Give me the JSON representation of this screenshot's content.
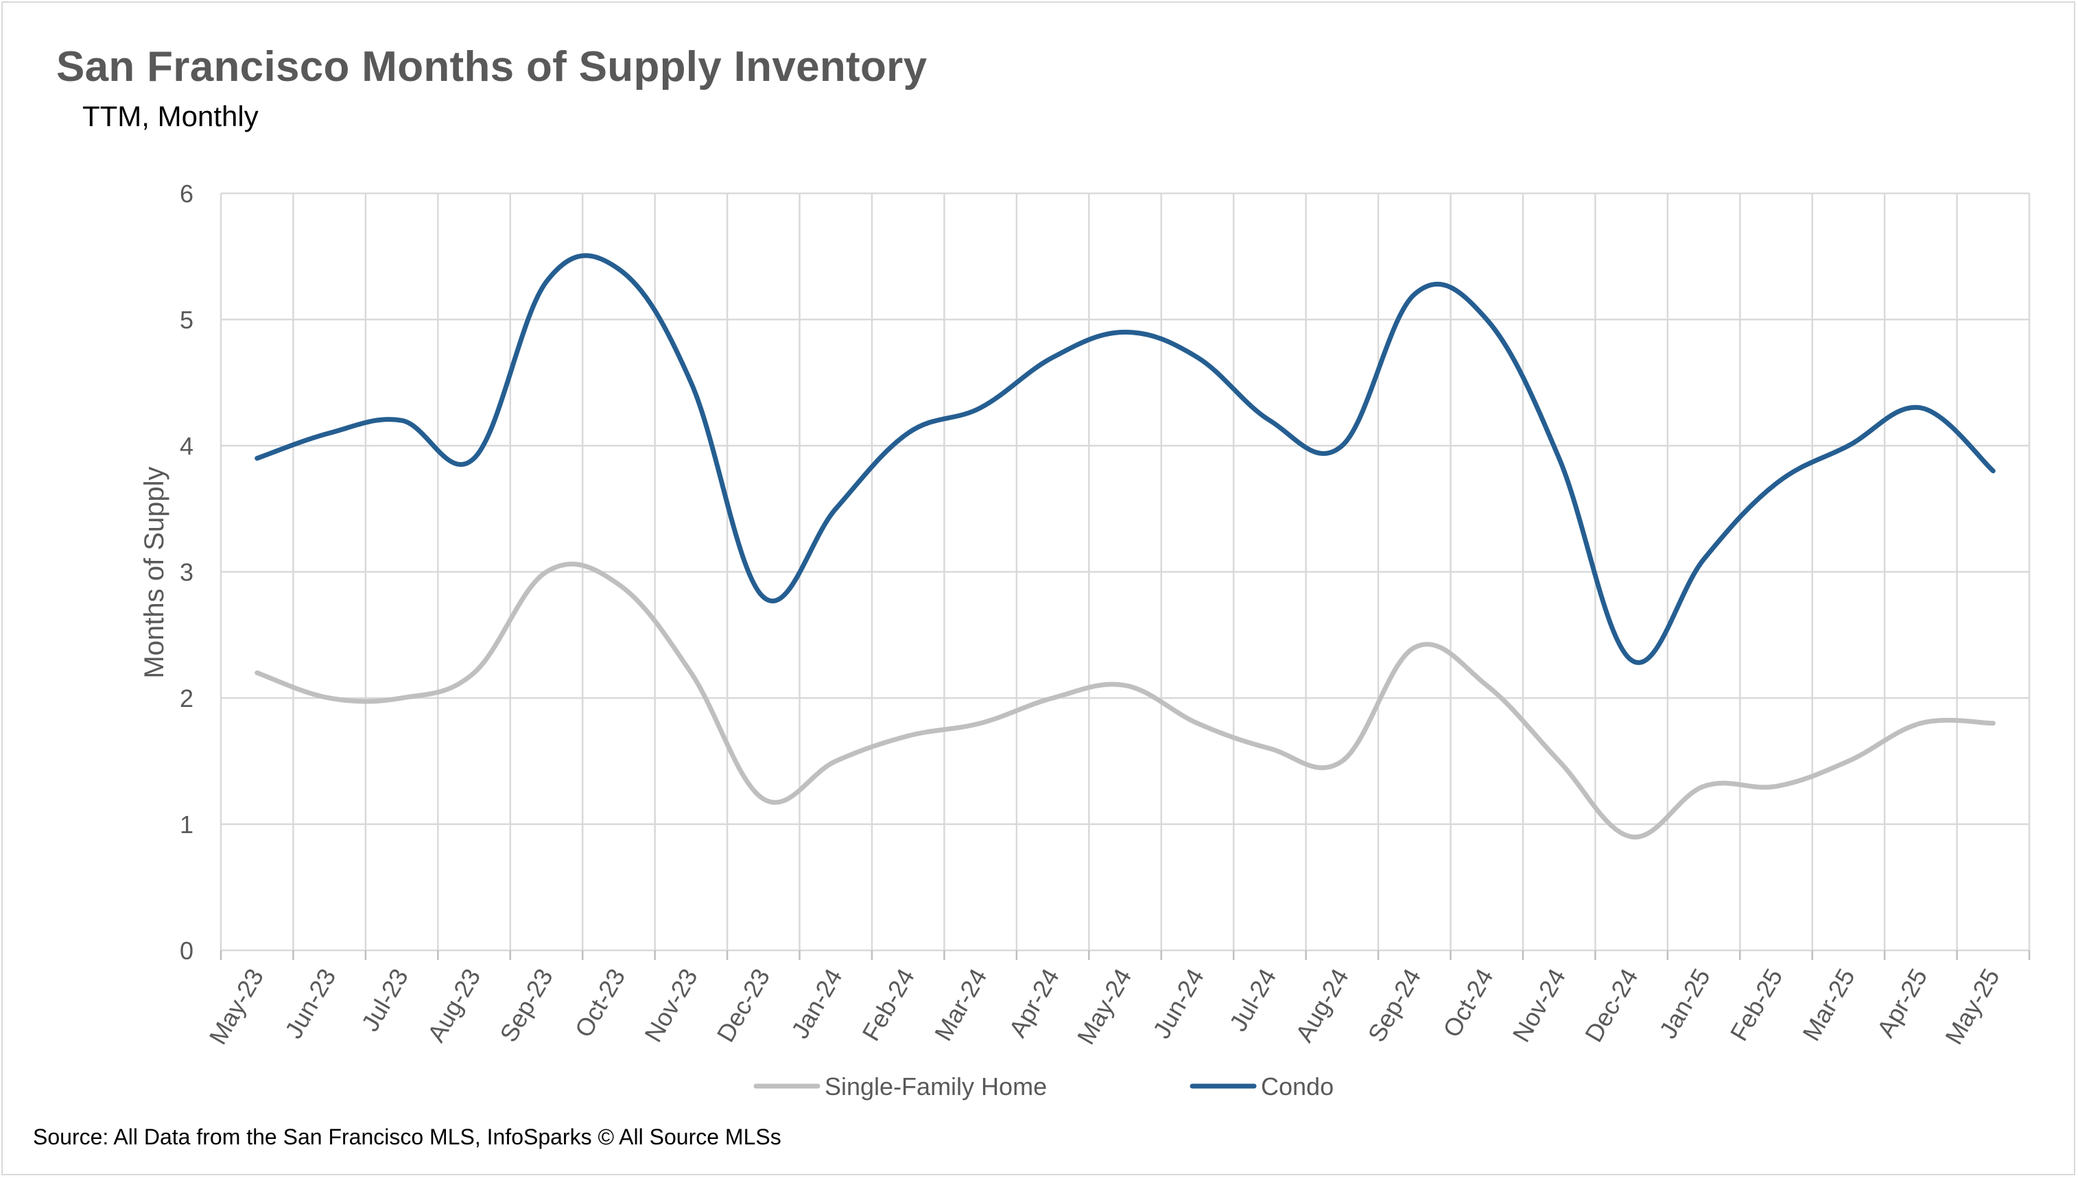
{
  "title": "San Francisco Months of Supply Inventory",
  "subtitle": "TTM, Monthly",
  "source": "Source: All Data from the San Francisco MLS, InfoSparks © All Source MLSs",
  "chart_data": {
    "type": "line",
    "title": "San Francisco Months of Supply Inventory",
    "subtitle": "TTM, Monthly",
    "xlabel": "",
    "ylabel": "Months of Supply",
    "ylim": [
      0,
      6
    ],
    "y_ticks": [
      0,
      1,
      2,
      3,
      4,
      5,
      6
    ],
    "grid": "on (horizontal and vertical)",
    "smoothed_lines": true,
    "legend_position": "bottom",
    "categories": [
      "May-23",
      "Jun-23",
      "Jul-23",
      "Aug-23",
      "Sep-23",
      "Oct-23",
      "Nov-23",
      "Dec-23",
      "Jan-24",
      "Feb-24",
      "Mar-24",
      "Apr-24",
      "May-24",
      "Jun-24",
      "Jul-24",
      "Aug-24",
      "Sep-24",
      "Oct-24",
      "Nov-24",
      "Dec-24",
      "Jan-25",
      "Feb-25",
      "Mar-25",
      "Apr-25",
      "May-25"
    ],
    "series": [
      {
        "name": "Single-Family Home",
        "color": "#bfbfbf",
        "values": [
          2.2,
          2.0,
          2.0,
          2.2,
          3.0,
          2.9,
          2.2,
          1.2,
          1.5,
          1.7,
          1.8,
          2.0,
          2.1,
          1.8,
          1.6,
          1.5,
          2.4,
          2.1,
          1.5,
          0.9,
          1.3,
          1.3,
          1.5,
          1.8,
          1.8
        ]
      },
      {
        "name": "Condo",
        "color": "#255e91",
        "values": [
          3.9,
          4.1,
          4.2,
          3.9,
          5.3,
          5.4,
          4.5,
          2.8,
          3.5,
          4.1,
          4.3,
          4.7,
          4.9,
          4.7,
          4.2,
          4.0,
          5.2,
          5.0,
          3.9,
          2.3,
          3.1,
          3.7,
          4.0,
          4.3,
          3.8
        ]
      }
    ]
  }
}
